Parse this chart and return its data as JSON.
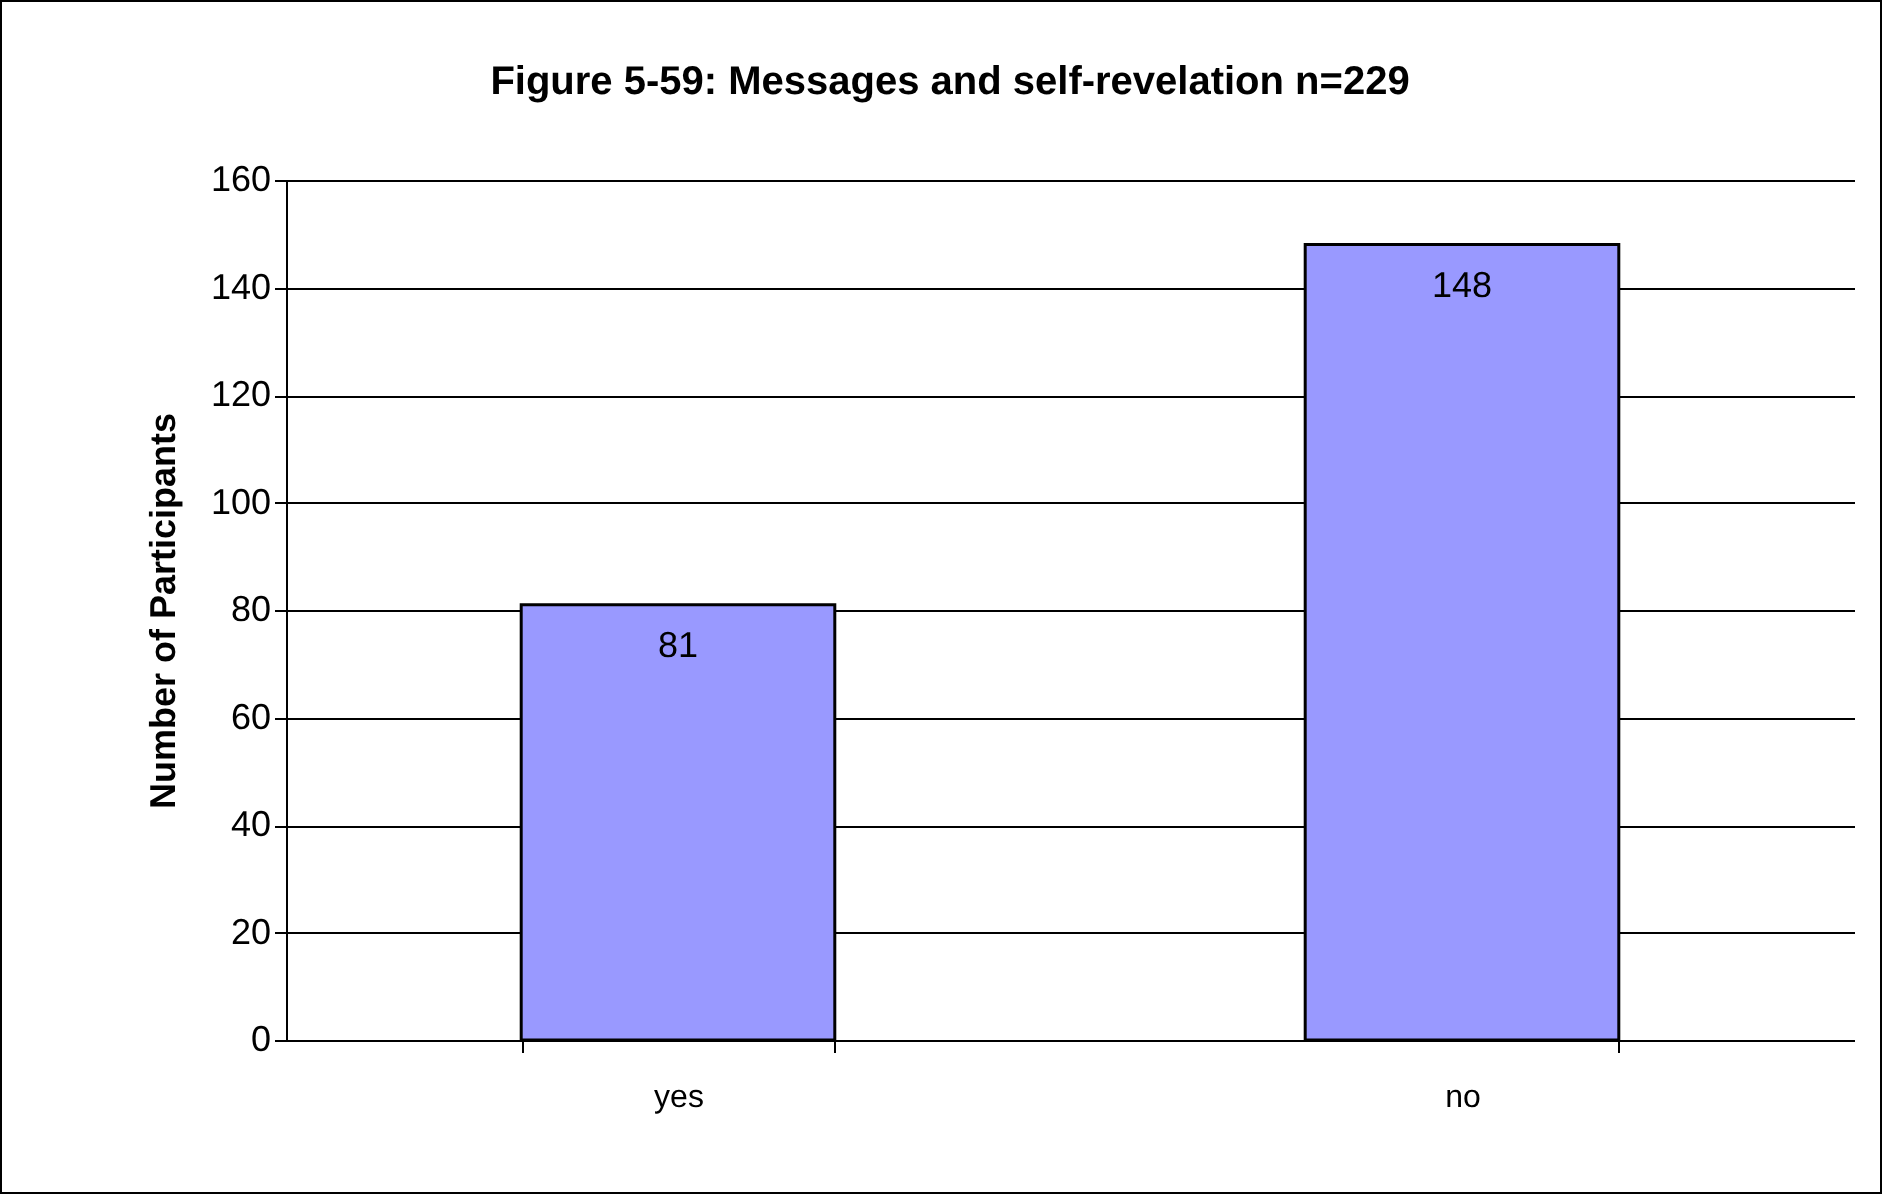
{
  "chart_data": {
    "type": "bar",
    "title": "Figure 5-59: Messages and self-revelation   n=229",
    "ylabel": "Number of Participants",
    "categories": [
      "yes",
      "no"
    ],
    "values": [
      81,
      148
    ],
    "color": "#9999ff",
    "ylim": [
      0,
      160
    ],
    "yticks": [
      0,
      20,
      40,
      60,
      80,
      100,
      120,
      140,
      160
    ],
    "grid": "y",
    "data_labels": true
  }
}
